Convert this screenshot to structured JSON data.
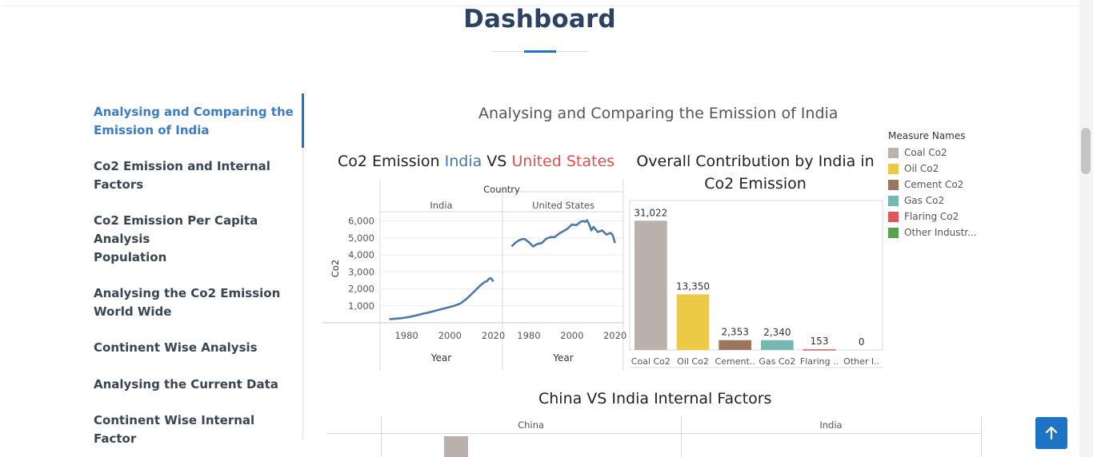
{
  "page": {
    "title": "Dashboard"
  },
  "nav": {
    "items": [
      {
        "label": "Analysing and Comparing the Emission of India",
        "active": true
      },
      {
        "label": "Co2 Emission and Internal Factors",
        "active": false
      },
      {
        "label": "Co2 Emission Per Capita Analysis",
        "active": false
      },
      {
        "label": "Population",
        "active": false
      },
      {
        "label": "Analysing the Co2 Emission World Wide",
        "active": false
      },
      {
        "label": "Continent Wise Analysis",
        "active": false
      },
      {
        "label": "Analysing the Current Data",
        "active": false
      },
      {
        "label": "Continent Wise Internal Factor",
        "active": false
      }
    ]
  },
  "section": {
    "title": "Analysing and Comparing the Emission of India"
  },
  "colors": {
    "accent": "#1f73c5",
    "india": "#4a76a5",
    "us": "#d9534f",
    "heading": "#2b4260"
  },
  "chart_data": [
    {
      "type": "line",
      "title_parts": [
        "Co2 Emission ",
        "India",
        " VS ",
        "United States"
      ],
      "header": "Country",
      "panels": [
        "India",
        "United States"
      ],
      "xlabel": "Year",
      "ylabel": "Co2",
      "x_ticks": [
        "1980",
        "2000",
        "2020"
      ],
      "y_ticks": [
        "6,000",
        "5,000",
        "4,000",
        "3,000",
        "2,000",
        "1,000"
      ],
      "ylim": [
        0,
        6500
      ],
      "xlim": [
        1970,
        2022
      ],
      "series": [
        {
          "name": "India",
          "x": [
            1972,
            1975,
            1978,
            1981,
            1984,
            1987,
            1990,
            1993,
            1996,
            1999,
            2002,
            2005,
            2008,
            2010,
            2012,
            2014,
            2016,
            2017,
            2018,
            2019,
            2020
          ],
          "y": [
            210,
            240,
            280,
            340,
            420,
            520,
            600,
            700,
            800,
            900,
            1000,
            1150,
            1450,
            1700,
            1950,
            2200,
            2400,
            2450,
            2600,
            2620,
            2430
          ]
        },
        {
          "name": "United States",
          "x": [
            1972,
            1974,
            1976,
            1978,
            1980,
            1982,
            1984,
            1986,
            1988,
            1990,
            1992,
            1994,
            1996,
            1998,
            2000,
            2002,
            2004,
            2005,
            2006,
            2007,
            2008,
            2009,
            2010,
            2012,
            2014,
            2016,
            2018,
            2019,
            2020
          ],
          "y": [
            4500,
            4750,
            4900,
            4950,
            4750,
            4500,
            4650,
            4700,
            4950,
            5050,
            5050,
            5250,
            5400,
            5550,
            5800,
            5750,
            5950,
            6000,
            5950,
            6050,
            5800,
            5450,
            5650,
            5350,
            5450,
            5200,
            5300,
            5150,
            4700
          ]
        }
      ]
    },
    {
      "type": "bar",
      "title_lines": [
        "Overall Contribution by India in",
        "Co2 Emission"
      ],
      "categories": [
        "Coal Co2",
        "Oil Co2",
        "Cement..",
        "Gas Co2",
        "Flaring ..",
        "Other I.."
      ],
      "values": [
        31022,
        13350,
        2353,
        2340,
        153,
        0
      ],
      "value_labels": [
        "31,022",
        "13,350",
        "2,353",
        "2,340",
        "153",
        "0"
      ],
      "colors": [
        "#bab0ac",
        "#edc948",
        "#9c755f",
        "#76b7b2",
        "#e15759",
        "#59a14f"
      ],
      "legend_title": "Measure Names",
      "legend": [
        "Coal Co2",
        "Oil Co2",
        "Cement Co2",
        "Gas Co2",
        "Flaring Co2",
        "Other Industr..."
      ]
    },
    {
      "type": "bar",
      "title": "China VS India Internal Factors",
      "panels": [
        "China",
        "India"
      ]
    }
  ]
}
